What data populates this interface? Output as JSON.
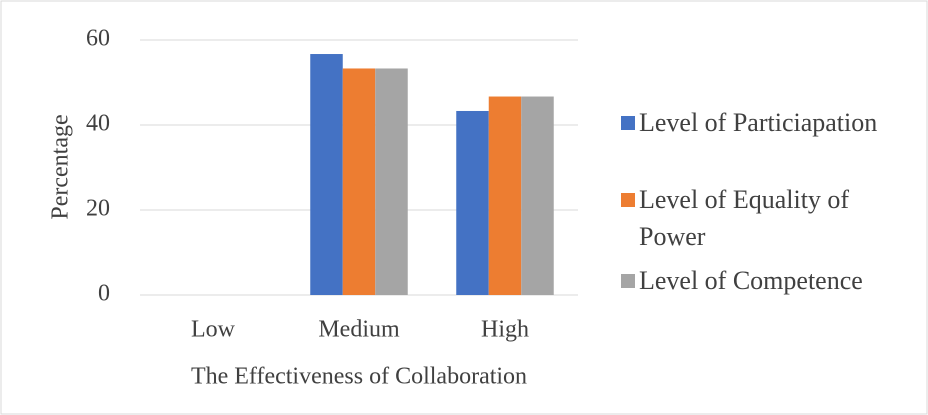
{
  "chart_data": {
    "type": "bar",
    "categories": [
      "Low",
      "Medium",
      "High"
    ],
    "series": [
      {
        "name": "Level of Particiapation",
        "color": "#4472c4",
        "values": [
          0,
          56.7,
          43.3
        ]
      },
      {
        "name": "Level of Equality of Power",
        "color": "#ed7d31",
        "values": [
          0,
          53.3,
          46.7
        ]
      },
      {
        "name": "Level of Competence",
        "color": "#a5a5a5",
        "values": [
          0,
          53.3,
          46.7
        ]
      }
    ],
    "ylim": [
      0,
      60
    ],
    "yticks": [
      0,
      20,
      40,
      60
    ],
    "grid": true,
    "xlabel": "The Effectiveness of Collaboration",
    "ylabel": "Percentage",
    "legend": "right"
  }
}
